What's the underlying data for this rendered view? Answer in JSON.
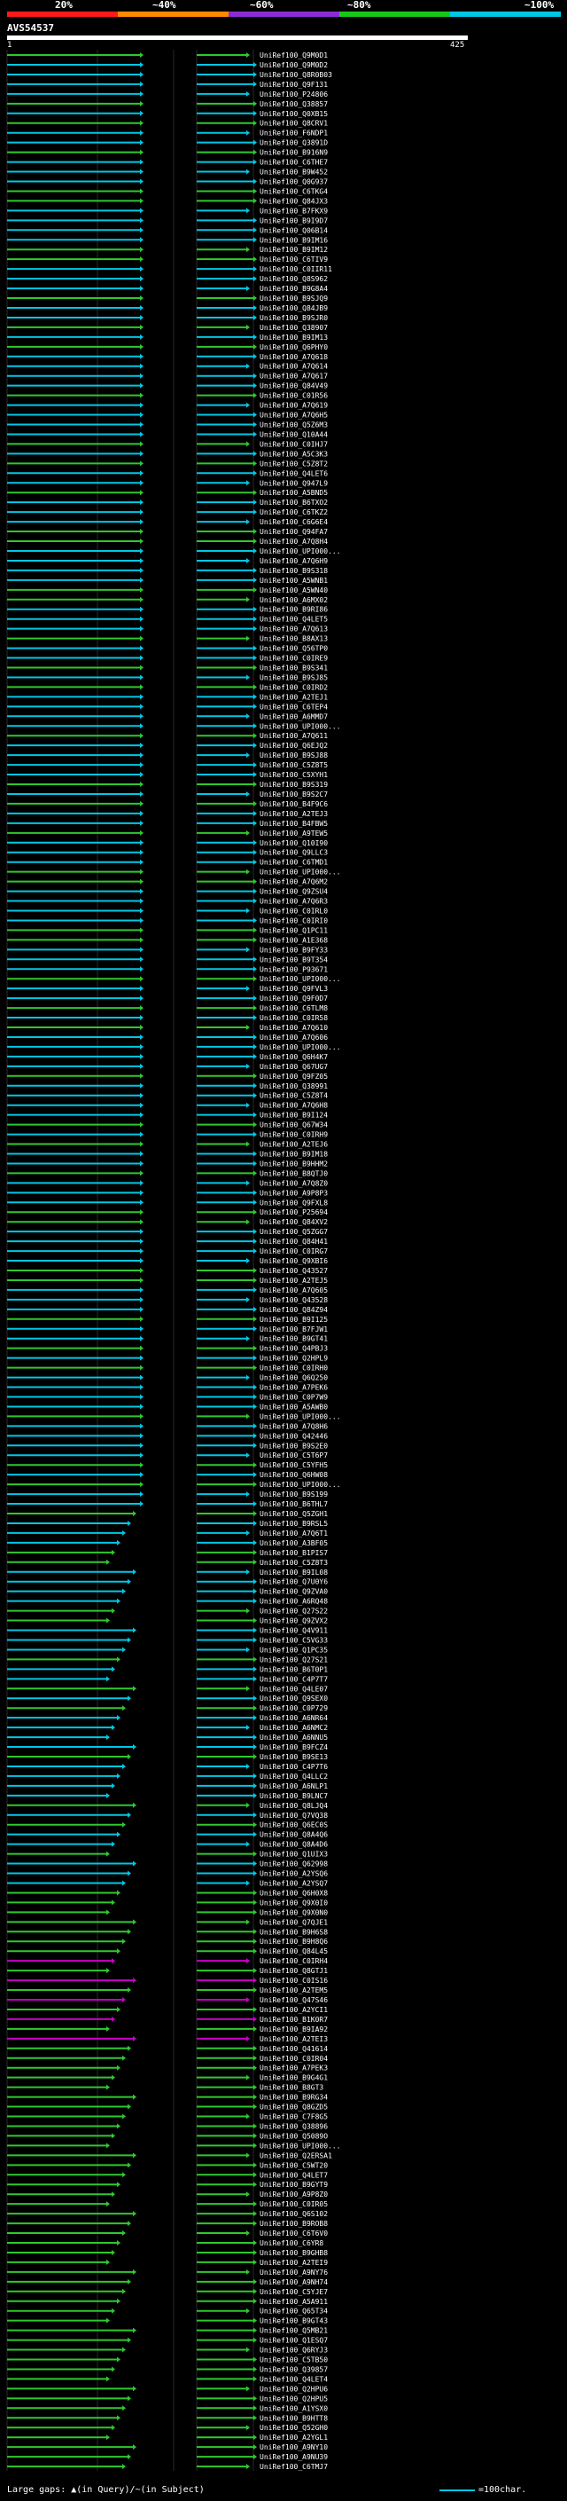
{
  "scale_labels": [
    "20%",
    "~40%",
    "~60%",
    "~80%",
    "~100%"
  ],
  "scale_colors": [
    "#ff1a1a",
    "#ff8a00",
    "#8b2bd6",
    "#18c818",
    "#00c8e6"
  ],
  "query_title": "AVS54537",
  "query_start": "1",
  "query_end": "425",
  "legend_text": "Large gaps: ▲(in Query)/~(in Subject)",
  "legend_scale": "=100char.",
  "colors": {
    "cyan": "#00c8e6",
    "green": "#2fc82f",
    "magenta": "#c800c8",
    "pink": "#ff66ff"
  },
  "hits": [
    "UniRef100_Q9M0D1",
    "UniRef100_Q9M0D2",
    "UniRef100_Q8R0B03",
    "UniRef100_Q9F131",
    "UniRef100_P24806",
    "UniRef100_Q38857",
    "UniRef100_Q0XB15",
    "UniRef100_Q8CRV1",
    "UniRef100_F6NDP1",
    "UniRef100_Q3891D",
    "UniRef100_B916N9",
    "UniRef100_C6THE7",
    "UniRef100_B9W452",
    "UniRef100_Q0G937",
    "UniRef100_C6TKG4",
    "UniRef100_Q84JX3",
    "UniRef100_B7FKX9",
    "UniRef100_B9I9D7",
    "UniRef100_Q06B14",
    "UniRef100_B9IM16",
    "UniRef100_B9IM12",
    "UniRef100_C6TIV9",
    "UniRef100_C0IIR11",
    "UniRef100_Q8S962",
    "UniRef100_B9G8A4",
    "UniRef100_B9SJQ9",
    "UniRef100_Q84JB9",
    "UniRef100_B9SJR0",
    "UniRef100_Q38907",
    "UniRef100_B9IM13",
    "UniRef100_Q6PHY0",
    "UniRef100_A7Q618",
    "UniRef100_A7Q614",
    "UniRef100_A7Q617",
    "UniRef100_Q84V49",
    "UniRef100_C01R56",
    "UniRef100_A7Q619",
    "UniRef100_A7Q6H5",
    "UniRef100_Q5Z6M3",
    "UniRef100_Q10A44",
    "UniRef100_C0IHJ7",
    "UniRef100_A5C3K3",
    "UniRef100_C5Z8T2",
    "UniRef100_Q4LET6",
    "UniRef100_Q947L9",
    "UniRef100_A5BND5",
    "UniRef100_B6TXO2",
    "UniRef100_C6TKZ2",
    "UniRef100_C6G6E4",
    "UniRef100_Q94FA7",
    "UniRef100_A7Q8H4",
    "UniRef100_UPI000...",
    "UniRef100_A7Q6H9",
    "UniRef100_B9S318",
    "UniRef100_A5WNB1",
    "UniRef100_A5WN40",
    "UniRef100_A6MX02",
    "UniRef100_B9RI86",
    "UniRef100_Q4LET5",
    "UniRef100_A7Q613",
    "UniRef100_B8AX13",
    "UniRef100_Q56TP0",
    "UniRef100_C0IRE9",
    "UniRef100_B9S341",
    "UniRef100_B9SJ85",
    "UniRef100_C0IRD2",
    "UniRef100_A2TEJ1",
    "UniRef100_C6TEP4",
    "UniRef100_A6MMD7",
    "UniRef100_UPI000...",
    "UniRef100_A7Q611",
    "UniRef100_Q6EJQ2",
    "UniRef100_B9SJ88",
    "UniRef100_C5Z8T5",
    "UniRef100_C5XYH1",
    "UniRef100_B9S319",
    "UniRef100_B9S2C7",
    "UniRef100_B4F9C6",
    "UniRef100_A2TEJ3",
    "UniRef100_B4FBW5",
    "UniRef100_A9TEW5",
    "UniRef100_Q10I90",
    "UniRef100_Q9LLC3",
    "UniRef100_C6TMD1",
    "UniRef100_UPI000...",
    "UniRef100_A7Q6M2",
    "UniRef100_Q9ZSU4",
    "UniRef100_A7Q6R3",
    "UniRef100_C0IRL0",
    "UniRef100_C0IRI0",
    "UniRef100_Q1PC11",
    "UniRef100_A1E368",
    "UniRef100_B9FY33",
    "UniRef100_B9T354",
    "UniRef100_P93671",
    "UniRef100_UPI000...",
    "UniRef100_Q9FVL3",
    "UniRef100_Q9F0D7",
    "UniRef100_C6TLM8",
    "UniRef100_C0IR58",
    "UniRef100_A7Q610",
    "UniRef100_A7Q606",
    "UniRef100_UPI000...",
    "UniRef100_Q6H4K7",
    "UniRef100_Q67UG7",
    "UniRef100_Q9FZ05",
    "UniRef100_Q38991",
    "UniRef100_C5Z8T4",
    "UniRef100_A7Q6H8",
    "UniRef100_B9I124",
    "UniRef100_Q67W34",
    "UniRef100_C0IRH9",
    "UniRef100_A2TEJ6",
    "UniRef100_B9IM18",
    "UniRef100_B9HHM2",
    "UniRef100_B8QTJ0",
    "UniRef100_A7Q8Z0",
    "UniRef100_A9P8P3",
    "UniRef100_Q9FXL8",
    "UniRef100_P25694",
    "UniRef100_Q84XV2",
    "UniRef100_Q5ZGG7",
    "UniRef100_Q84H41",
    "UniRef100_C0IRG7",
    "UniRef100_Q9XBI6",
    "UniRef100_Q43527",
    "UniRef100_A2TEJ5",
    "UniRef100_A7Q605",
    "UniRef100_Q43528",
    "UniRef100_Q84Z94",
    "UniRef100_B9I125",
    "UniRef100_B7FJW1",
    "UniRef100_B9GT41",
    "UniRef100_Q4PBJ3",
    "UniRef100_Q2HPL9",
    "UniRef100_C0IRH0",
    "UniRef100_Q6Q250",
    "UniRef100_A7PEK6",
    "UniRef100_C0P7W9",
    "UniRef100_A5AWB0",
    "UniRef100_UPI000...",
    "UniRef100_A7Q8H6",
    "UniRef100_Q42446",
    "UniRef100_B9S2E0",
    "UniRef100_C5T6P7",
    "UniRef100_C5YFH5",
    "UniRef100_Q6HW08",
    "UniRef100_UPI000...",
    "UniRef100_B9S199",
    "UniRef100_B6THL7",
    "UniRef100_Q5ZGH1",
    "UniRef100_B9RSL5",
    "UniRef100_A7Q6T1",
    "UniRef100_A3BF05",
    "UniRef100_B1PIS7",
    "UniRef100_C5Z8T3",
    "UniRef100_B9IL08",
    "UniRef100_Q7U0Y6",
    "UniRef100_Q9ZVA0",
    "UniRef100_A6RQ48",
    "UniRef100_Q27S22",
    "UniRef100_Q9ZVX2",
    "UniRef100_Q4V911",
    "UniRef100_C5VG33",
    "UniRef100_Q1PC35",
    "UniRef100_Q27S21",
    "UniRef100_B6T0P1",
    "UniRef100_C4P7T7",
    "UniRef100_Q4LE07",
    "UniRef100_Q9SEX0",
    "UniRef100_C0P729",
    "UniRef100_A6NR64",
    "UniRef100_A6NMC2",
    "UniRef100_A6NNU5",
    "UniRef100_B9FCZ4",
    "UniRef100_B9SE13",
    "UniRef100_C4P7T6",
    "UniRef100_Q4LLC2",
    "UniRef100_A6NLP1",
    "UniRef100_B9LNC7",
    "UniRef100_Q8LJQ4",
    "UniRef100_Q7VQ38",
    "UniRef100_Q6EC0S",
    "UniRef100_Q8A4Q6",
    "UniRef100_Q8A4D6",
    "UniRef100_Q1UIX3",
    "UniRef100_Q62998",
    "UniRef100_A2YSQ6",
    "UniRef100_A2YSQ7",
    "UniRef100_Q6H0X8",
    "UniRef100_Q9X0I0",
    "UniRef100_Q9X0N0",
    "UniRef100_Q7QJE1",
    "UniRef100_B9H6S8",
    "UniRef100_B9H8Q6",
    "UniRef100_Q84L45",
    "UniRef100_C0IRH4",
    "UniRef100_Q8GTJ1",
    "UniRef100_C0IS16",
    "UniRef100_A2TEM5",
    "UniRef100_Q47S46",
    "UniRef100_A2YCI1",
    "UniRef100_B1K0R7",
    "UniRef100_B9IA92",
    "UniRef100_A2TEI3",
    "UniRef100_Q41614",
    "UniRef100_C0IR04",
    "UniRef100_A7PEK3",
    "UniRef100_B9G4G1",
    "UniRef100_B8GT3",
    "UniRef100_B9RG34",
    "UniRef100_Q8GZD5",
    "UniRef100_C7F8G5",
    "UniRef100_Q38896",
    "UniRef100_Q5089O",
    "UniRef100_UPI000...",
    "UniRef100_Q2ERSA1",
    "UniRef100_C5WT20",
    "UniRef100_Q4LET7",
    "UniRef100_B9GYT9",
    "UniRef100_A9P8Z0",
    "UniRef100_C0IR05",
    "UniRef100_Q6S102",
    "UniRef100_B9ROB8",
    "UniRef100_C6T6V0",
    "UniRef100_C6YR8",
    "UniRef100_B9GHB8",
    "UniRef100_A2TEI9",
    "UniRef100_A9NY76",
    "UniRef100_A9NH74",
    "UniRef100_C5YJE7",
    "UniRef100_A5A911",
    "UniRef100_Q65T34",
    "UniRef100_B9GT43",
    "UniRef100_Q5MB21",
    "UniRef100_Q1ESQ7",
    "UniRef100_Q6RYJ3",
    "UniRef100_C5TB50",
    "UniRef100_Q39857",
    "UniRef100_Q4LET4",
    "UniRef100_Q2HPU6",
    "UniRef100_Q2HPU5",
    "UniRef100_A1YSX0",
    "UniRef100_B9HTT8",
    "UniRef100_Q52GH0",
    "UniRef100_A2YGL1",
    "UniRef100_A9NY10",
    "UniRef100_A9NU39",
    "UniRef100_C6TMJ7"
  ]
}
